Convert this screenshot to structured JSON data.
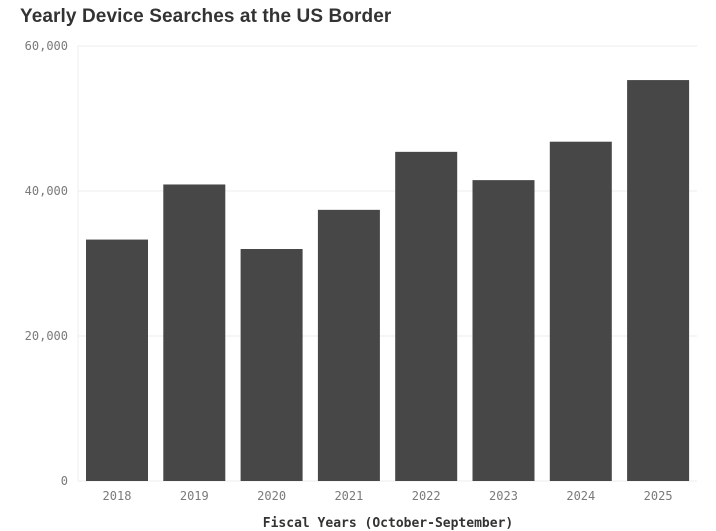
{
  "chart_data": {
    "type": "bar",
    "title": "Yearly Device Searches at the US Border",
    "xlabel": "Fiscal Years (October-September)",
    "ylabel": "",
    "categories": [
      "2018",
      "2019",
      "2020",
      "2021",
      "2022",
      "2023",
      "2024",
      "2025"
    ],
    "values": [
      33300,
      40900,
      32000,
      37400,
      45400,
      41500,
      46800,
      55300
    ],
    "ylim": [
      0,
      60000
    ],
    "yticks": [
      0,
      20000,
      40000,
      60000
    ],
    "ytick_labels": [
      "0",
      "20,000",
      "40,000",
      "60,000"
    ],
    "grid": true,
    "colors": {
      "bar": "#474747",
      "grid": "#ececec",
      "tick": "#7a7a7a"
    }
  }
}
